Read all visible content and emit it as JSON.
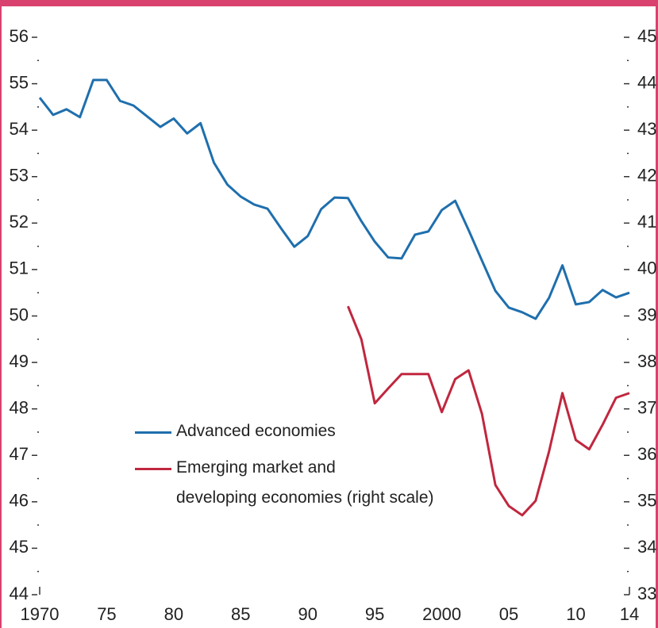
{
  "chart_data": {
    "type": "line",
    "x": [
      1970,
      1971,
      1972,
      1973,
      1974,
      1975,
      1976,
      1977,
      1978,
      1979,
      1980,
      1981,
      1982,
      1983,
      1984,
      1985,
      1986,
      1987,
      1988,
      1989,
      1990,
      1991,
      1992,
      1993,
      1994,
      1995,
      1996,
      1997,
      1998,
      1999,
      2000,
      2001,
      2002,
      2003,
      2004,
      2005,
      2006,
      2007,
      2008,
      2009,
      2010,
      2011,
      2012,
      2013,
      2014
    ],
    "series": [
      {
        "name": "Advanced economies",
        "color": "#1f6fad",
        "values": [
          54.7,
          54.33,
          54.45,
          54.28,
          55.08,
          55.08,
          54.63,
          54.53,
          54.3,
          54.07,
          54.25,
          53.93,
          54.15,
          53.3,
          52.83,
          52.57,
          52.4,
          52.31,
          51.89,
          51.49,
          51.72,
          52.3,
          52.55,
          52.54,
          52.04,
          51.6,
          51.26,
          51.24,
          51.75,
          51.82,
          52.28,
          52.48,
          51.85,
          51.19,
          50.54,
          50.18,
          50.08,
          49.94,
          50.39,
          51.09,
          50.25,
          50.3,
          50.56,
          50.4,
          50.5
        ]
      },
      {
        "name": "Emerging market and\ndeveloping economies (right scale)",
        "color": "#c0273f",
        "axis": "y2",
        "values": [
          null,
          null,
          null,
          null,
          null,
          null,
          null,
          null,
          null,
          null,
          null,
          null,
          null,
          null,
          null,
          null,
          null,
          null,
          null,
          null,
          null,
          null,
          null,
          39.21,
          38.5,
          37.12,
          37.44,
          37.75,
          37.75,
          37.75,
          36.93,
          37.64,
          37.83,
          36.89,
          35.36,
          34.91,
          34.71,
          35.02,
          36.08,
          37.34,
          36.33,
          36.13,
          36.66,
          37.24,
          37.34
        ]
      }
    ],
    "xlim": [
      1970,
      2014
    ],
    "xticks": [
      1970,
      {
        "value": 1975,
        "label": "75"
      },
      {
        "value": 1980,
        "label": "80"
      },
      {
        "value": 1985,
        "label": "85"
      },
      {
        "value": 1990,
        "label": "90"
      },
      {
        "value": 1995,
        "label": "95"
      },
      2000,
      {
        "value": 2005,
        "label": "05"
      },
      {
        "value": 2010,
        "label": "10"
      },
      {
        "value": 2014,
        "label": "14"
      }
    ],
    "ylim": [
      44,
      56
    ],
    "yticks": [
      44,
      45,
      46,
      47,
      48,
      49,
      50,
      51,
      52,
      53,
      54,
      55,
      56
    ],
    "y2lim": [
      33,
      45
    ],
    "y2ticks": [
      33,
      34,
      35,
      36,
      37,
      38,
      39,
      40,
      41,
      42,
      43,
      44,
      45
    ],
    "legend": "center-left"
  }
}
